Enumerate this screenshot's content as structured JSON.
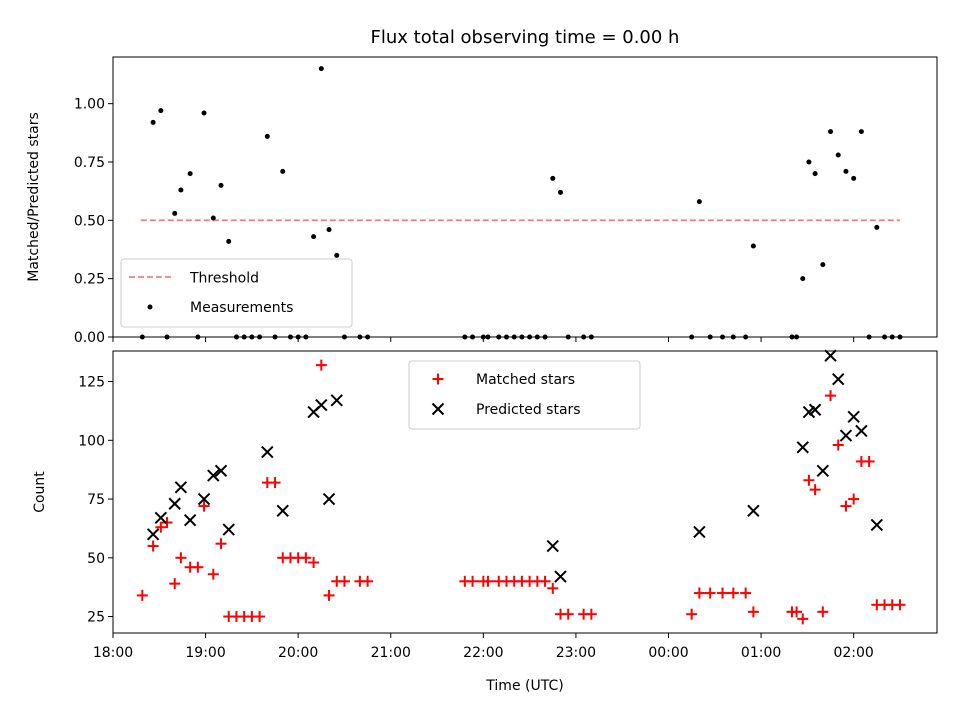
{
  "figure": {
    "title": "Flux total observing time = 0.00 h"
  },
  "chart_data": [
    {
      "type": "scatter",
      "panel": "top",
      "ylabel": "Matched/Predicted stars",
      "ylim": [
        0,
        1.2
      ],
      "yticks": [
        0,
        0.25,
        0.5,
        0.75,
        1.0
      ],
      "ytick_labels": [
        "0.00",
        "0.25",
        "0.50",
        "0.75",
        "1.00"
      ],
      "xlim_hours": [
        18.0,
        26.9
      ],
      "legend_position": "lower-left",
      "grid": false,
      "threshold": {
        "name": "Threshold",
        "value": 0.5,
        "x_range": [
          "18:18",
          "02:30"
        ],
        "color": "#f08080",
        "style": "dashed"
      },
      "series": [
        {
          "name": "Measurements",
          "color": "#000000",
          "marker": "dot",
          "points": [
            [
              "18:19",
              0.0
            ],
            [
              "18:26",
              0.92
            ],
            [
              "18:31",
              0.97
            ],
            [
              "18:35",
              0.0
            ],
            [
              "18:40",
              0.53
            ],
            [
              "18:44",
              0.63
            ],
            [
              "18:50",
              0.7
            ],
            [
              "18:55",
              0.0
            ],
            [
              "18:59",
              0.96
            ],
            [
              "19:05",
              0.51
            ],
            [
              "19:10",
              0.65
            ],
            [
              "19:15",
              0.41
            ],
            [
              "19:20",
              0.0
            ],
            [
              "19:25",
              0.0
            ],
            [
              "19:30",
              0.0
            ],
            [
              "19:35",
              0.0
            ],
            [
              "19:40",
              0.86
            ],
            [
              "19:45",
              0.0
            ],
            [
              "19:50",
              0.71
            ],
            [
              "19:55",
              0.0
            ],
            [
              "20:00",
              0.0
            ],
            [
              "20:05",
              0.0
            ],
            [
              "20:10",
              0.43
            ],
            [
              "20:15",
              1.15
            ],
            [
              "20:20",
              0.46
            ],
            [
              "20:25",
              0.35
            ],
            [
              "20:30",
              0.0
            ],
            [
              "20:40",
              0.0
            ],
            [
              "20:45",
              0.0
            ],
            [
              "21:48",
              0.0
            ],
            [
              "21:53",
              0.0
            ],
            [
              "22:00",
              0.0
            ],
            [
              "22:03",
              0.0
            ],
            [
              "22:10",
              0.0
            ],
            [
              "22:15",
              0.0
            ],
            [
              "22:20",
              0.0
            ],
            [
              "22:25",
              0.0
            ],
            [
              "22:30",
              0.0
            ],
            [
              "22:35",
              0.0
            ],
            [
              "22:40",
              0.0
            ],
            [
              "22:45",
              0.68
            ],
            [
              "22:50",
              0.62
            ],
            [
              "22:55",
              0.0
            ],
            [
              "23:05",
              0.0
            ],
            [
              "23:10",
              0.0
            ],
            [
              "00:15",
              0.0
            ],
            [
              "00:20",
              0.58
            ],
            [
              "00:27",
              0.0
            ],
            [
              "00:35",
              0.0
            ],
            [
              "00:42",
              0.0
            ],
            [
              "00:50",
              0.0
            ],
            [
              "00:55",
              0.39
            ],
            [
              "01:20",
              0.0
            ],
            [
              "01:23",
              0.0
            ],
            [
              "01:27",
              0.25
            ],
            [
              "01:31",
              0.75
            ],
            [
              "01:35",
              0.7
            ],
            [
              "01:40",
              0.31
            ],
            [
              "01:45",
              0.88
            ],
            [
              "01:50",
              0.78
            ],
            [
              "01:55",
              0.71
            ],
            [
              "02:00",
              0.68
            ],
            [
              "02:05",
              0.88
            ],
            [
              "02:10",
              0.0
            ],
            [
              "02:15",
              0.47
            ],
            [
              "02:20",
              0.0
            ],
            [
              "02:25",
              0.0
            ],
            [
              "02:30",
              0.0
            ]
          ]
        }
      ]
    },
    {
      "type": "scatter",
      "panel": "bottom",
      "xlabel": "Time (UTC)",
      "ylabel": "Count",
      "ylim": [
        18,
        138
      ],
      "yticks": [
        25,
        50,
        75,
        100,
        125
      ],
      "ytick_labels": [
        "25",
        "50",
        "75",
        "100",
        "125"
      ],
      "xlim_hours": [
        18.0,
        26.9
      ],
      "xticks_hours": [
        18,
        19,
        20,
        21,
        22,
        23,
        24,
        25,
        26
      ],
      "xtick_labels": [
        "18:00",
        "19:00",
        "20:00",
        "21:00",
        "22:00",
        "23:00",
        "00:00",
        "01:00",
        "02:00"
      ],
      "legend_position": "top-center",
      "grid": false,
      "series": [
        {
          "name": "Matched stars",
          "color": "#ff0000",
          "marker": "plus",
          "points": [
            [
              "18:19",
              34
            ],
            [
              "18:26",
              55
            ],
            [
              "18:31",
              63
            ],
            [
              "18:35",
              65
            ],
            [
              "18:40",
              39
            ],
            [
              "18:44",
              50
            ],
            [
              "18:50",
              46
            ],
            [
              "18:55",
              46
            ],
            [
              "18:59",
              72
            ],
            [
              "19:05",
              43
            ],
            [
              "19:10",
              56
            ],
            [
              "19:15",
              25
            ],
            [
              "19:20",
              25
            ],
            [
              "19:25",
              25
            ],
            [
              "19:30",
              25
            ],
            [
              "19:35",
              25
            ],
            [
              "19:40",
              82
            ],
            [
              "19:45",
              82
            ],
            [
              "19:50",
              50
            ],
            [
              "19:55",
              50
            ],
            [
              "20:00",
              50
            ],
            [
              "20:05",
              50
            ],
            [
              "20:10",
              48
            ],
            [
              "20:15",
              132
            ],
            [
              "20:20",
              34
            ],
            [
              "20:25",
              40
            ],
            [
              "20:30",
              40
            ],
            [
              "20:40",
              40
            ],
            [
              "20:45",
              40
            ],
            [
              "21:48",
              40
            ],
            [
              "21:53",
              40
            ],
            [
              "22:00",
              40
            ],
            [
              "22:03",
              40
            ],
            [
              "22:10",
              40
            ],
            [
              "22:15",
              40
            ],
            [
              "22:20",
              40
            ],
            [
              "22:25",
              40
            ],
            [
              "22:30",
              40
            ],
            [
              "22:35",
              40
            ],
            [
              "22:40",
              40
            ],
            [
              "22:45",
              37
            ],
            [
              "22:50",
              26
            ],
            [
              "22:55",
              26
            ],
            [
              "23:05",
              26
            ],
            [
              "23:10",
              26
            ],
            [
              "00:15",
              26
            ],
            [
              "00:20",
              35
            ],
            [
              "00:27",
              35
            ],
            [
              "00:35",
              35
            ],
            [
              "00:42",
              35
            ],
            [
              "00:50",
              35
            ],
            [
              "00:55",
              27
            ],
            [
              "01:20",
              27
            ],
            [
              "01:23",
              27
            ],
            [
              "01:27",
              24
            ],
            [
              "01:31",
              83
            ],
            [
              "01:35",
              79
            ],
            [
              "01:40",
              27
            ],
            [
              "01:45",
              119
            ],
            [
              "01:50",
              98
            ],
            [
              "01:55",
              72
            ],
            [
              "02:00",
              75
            ],
            [
              "02:05",
              91
            ],
            [
              "02:10",
              91
            ],
            [
              "02:15",
              30
            ],
            [
              "02:20",
              30
            ],
            [
              "02:25",
              30
            ],
            [
              "02:30",
              30
            ]
          ]
        },
        {
          "name": "Predicted stars",
          "color": "#000000",
          "marker": "x",
          "points": [
            [
              "18:26",
              60
            ],
            [
              "18:31",
              67
            ],
            [
              "18:40",
              73
            ],
            [
              "18:44",
              80
            ],
            [
              "18:50",
              66
            ],
            [
              "18:59",
              75
            ],
            [
              "19:05",
              85
            ],
            [
              "19:10",
              87
            ],
            [
              "19:15",
              62
            ],
            [
              "19:40",
              95
            ],
            [
              "19:50",
              70
            ],
            [
              "20:10",
              112
            ],
            [
              "20:15",
              115
            ],
            [
              "20:20",
              75
            ],
            [
              "20:25",
              117
            ],
            [
              "22:45",
              55
            ],
            [
              "22:50",
              42
            ],
            [
              "00:20",
              61
            ],
            [
              "00:55",
              70
            ],
            [
              "01:27",
              97
            ],
            [
              "01:31",
              112
            ],
            [
              "01:35",
              113
            ],
            [
              "01:40",
              87
            ],
            [
              "01:45",
              136
            ],
            [
              "01:50",
              126
            ],
            [
              "01:55",
              102
            ],
            [
              "02:00",
              110
            ],
            [
              "02:05",
              104
            ],
            [
              "02:15",
              64
            ]
          ]
        }
      ]
    }
  ]
}
